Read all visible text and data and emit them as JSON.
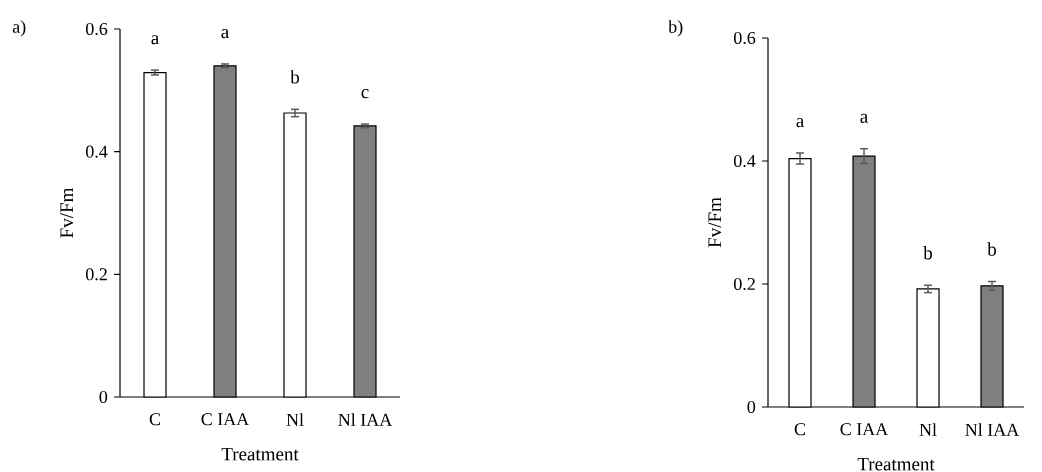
{
  "chart_data": [
    {
      "type": "bar",
      "title": "a)",
      "xlabel": "Treatment",
      "ylabel": "Fv/Fm",
      "categories": [
        "C",
        "C IAA",
        "Nl",
        "Nl IAA"
      ],
      "values": [
        0.529,
        0.54,
        0.463,
        0.442
      ],
      "errors": [
        0.004,
        0.003,
        0.006,
        0.003
      ],
      "colors": [
        "#ffffff",
        "#808080",
        "#ffffff",
        "#808080"
      ],
      "ylim": [
        0,
        0.6
      ],
      "yticks": [
        0,
        0.2,
        0.4,
        0.6
      ],
      "annotations": [
        "a",
        "a",
        "b",
        "c"
      ]
    },
    {
      "type": "bar",
      "title": "b)",
      "xlabel": "Treatment",
      "ylabel": "Fv/Fm",
      "categories": [
        "C",
        "C IAA",
        "Nl",
        "Nl IAA"
      ],
      "values": [
        0.404,
        0.408,
        0.192,
        0.197
      ],
      "errors": [
        0.009,
        0.012,
        0.006,
        0.007
      ],
      "colors": [
        "#ffffff",
        "#808080",
        "#ffffff",
        "#808080"
      ],
      "ylim": [
        0,
        0.6
      ],
      "yticks": [
        0,
        0.2,
        0.4,
        0.6
      ],
      "annotations": [
        "a",
        "a",
        "b",
        "b"
      ]
    }
  ]
}
